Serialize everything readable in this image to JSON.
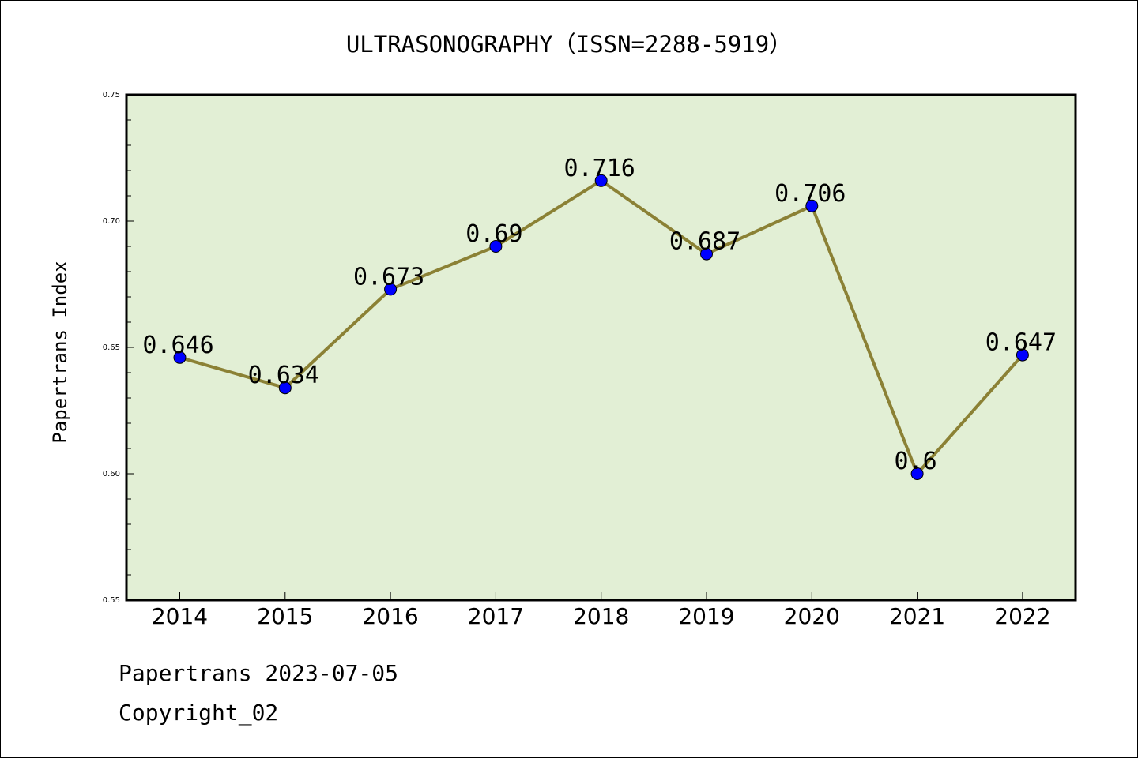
{
  "chart_data": {
    "type": "line",
    "title": "ULTRASONOGRAPHY（ISSN=2288-5919）",
    "xlabel": "",
    "ylabel": "Papertrans Index",
    "categories": [
      "2014",
      "2015",
      "2016",
      "2017",
      "2018",
      "2019",
      "2020",
      "2021",
      "2022"
    ],
    "values": [
      0.646,
      0.634,
      0.673,
      0.69,
      0.716,
      0.687,
      0.706,
      0.6,
      0.647
    ],
    "data_labels": [
      "0.646",
      "0.634",
      "0.673",
      "0.69",
      "0.716",
      "0.687",
      "0.706",
      "0.6",
      "0.647"
    ],
    "ylim": [
      0.55,
      0.75
    ],
    "yticks": [
      0.55,
      0.6,
      0.65,
      0.7,
      0.75
    ],
    "ytick_labels": [
      "0.55",
      "0.60",
      "0.65",
      "0.70",
      "0.75"
    ],
    "grid": false,
    "legend": "none",
    "colors": {
      "line": "#8b8135",
      "marker": "#0000ff",
      "plot_background": "#e2efd5"
    }
  },
  "footer": {
    "line1": "Papertrans 2023-07-05",
    "line2": "Copyright_02"
  }
}
